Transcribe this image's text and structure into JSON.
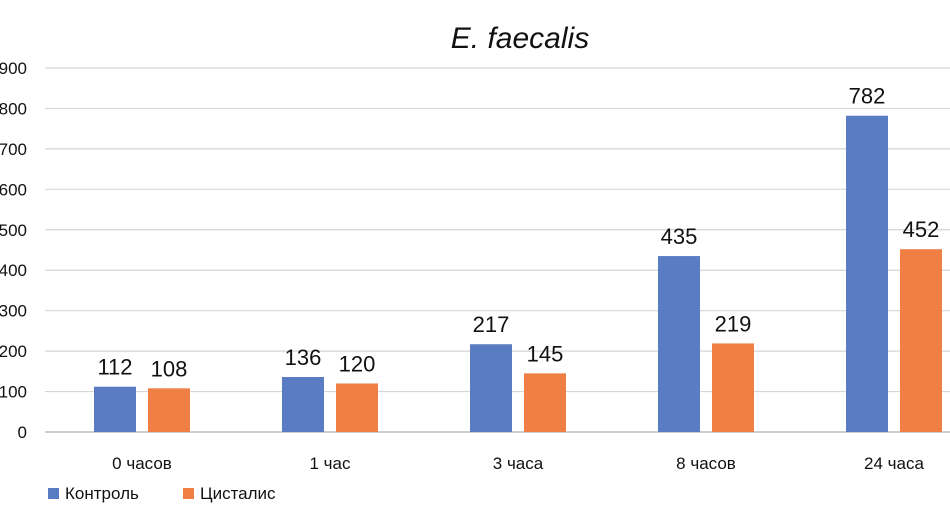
{
  "chart_data": {
    "type": "bar",
    "title": "E. faecalis",
    "categories": [
      "0 часов",
      "1 час",
      "3 часа",
      "8 часов",
      "24 часа"
    ],
    "series": [
      {
        "name": "Контроль",
        "values": [
          112,
          136,
          217,
          435,
          782
        ],
        "color": "#5a7cc2"
      },
      {
        "name": "Цисталис",
        "values": [
          108,
          120,
          145,
          219,
          452
        ],
        "color": "#ef7f45"
      }
    ],
    "y_ticks": [
      "0",
      "100",
      "200",
      "300",
      "400",
      "500",
      "600",
      "700",
      "800",
      "900"
    ],
    "ylim": [
      0,
      900
    ],
    "grid": true,
    "legend_position": "bottom-left",
    "xlabel": "",
    "ylabel": ""
  }
}
